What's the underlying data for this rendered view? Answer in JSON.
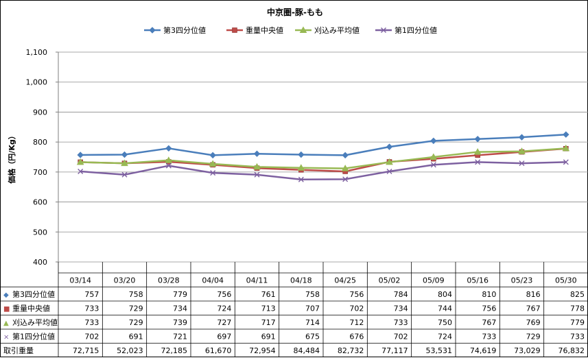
{
  "chart_data": {
    "type": "line",
    "title": "中京圏-豚-もも",
    "xlabel": "",
    "ylabel": "価格（円/Kg）",
    "ylim": [
      400,
      1100
    ],
    "yticks": [
      400,
      500,
      600,
      700,
      800,
      900,
      1000,
      1100
    ],
    "ytick_labels": [
      "400",
      "500",
      "600",
      "700",
      "800",
      "900",
      "1,000",
      "1,100"
    ],
    "grid": true,
    "legend_position": "top",
    "categories": [
      "03/14",
      "03/20",
      "03/28",
      "04/04",
      "04/11",
      "04/18",
      "04/25",
      "05/02",
      "05/09",
      "05/16",
      "05/23",
      "05/30"
    ],
    "series": [
      {
        "name": "第3四分位値",
        "color": "#4a7ebb",
        "marker": "diamond",
        "marker_glyph": "◆",
        "values": [
          757,
          758,
          779,
          756,
          761,
          758,
          756,
          784,
          804,
          810,
          816,
          825
        ]
      },
      {
        "name": "重量中央値",
        "color": "#be4b48",
        "marker": "square",
        "marker_glyph": "■",
        "values": [
          733,
          729,
          734,
          724,
          713,
          707,
          702,
          734,
          744,
          756,
          767,
          778
        ]
      },
      {
        "name": "刈込み平均値",
        "color": "#98b954",
        "marker": "triangle",
        "marker_glyph": "▲",
        "values": [
          733,
          729,
          739,
          727,
          717,
          714,
          712,
          733,
          750,
          767,
          769,
          779
        ]
      },
      {
        "name": "第1四分位値",
        "color": "#7d60a0",
        "marker": "x",
        "marker_glyph": "×",
        "values": [
          702,
          691,
          721,
          697,
          691,
          675,
          676,
          702,
          724,
          733,
          729,
          733
        ]
      }
    ],
    "volume_row": {
      "name": "取引重量",
      "values": [
        "72,715",
        "52,023",
        "72,185",
        "61,670",
        "72,954",
        "84,484",
        "82,732",
        "77,117",
        "53,531",
        "74,619",
        "73,029",
        "76,832"
      ]
    }
  }
}
